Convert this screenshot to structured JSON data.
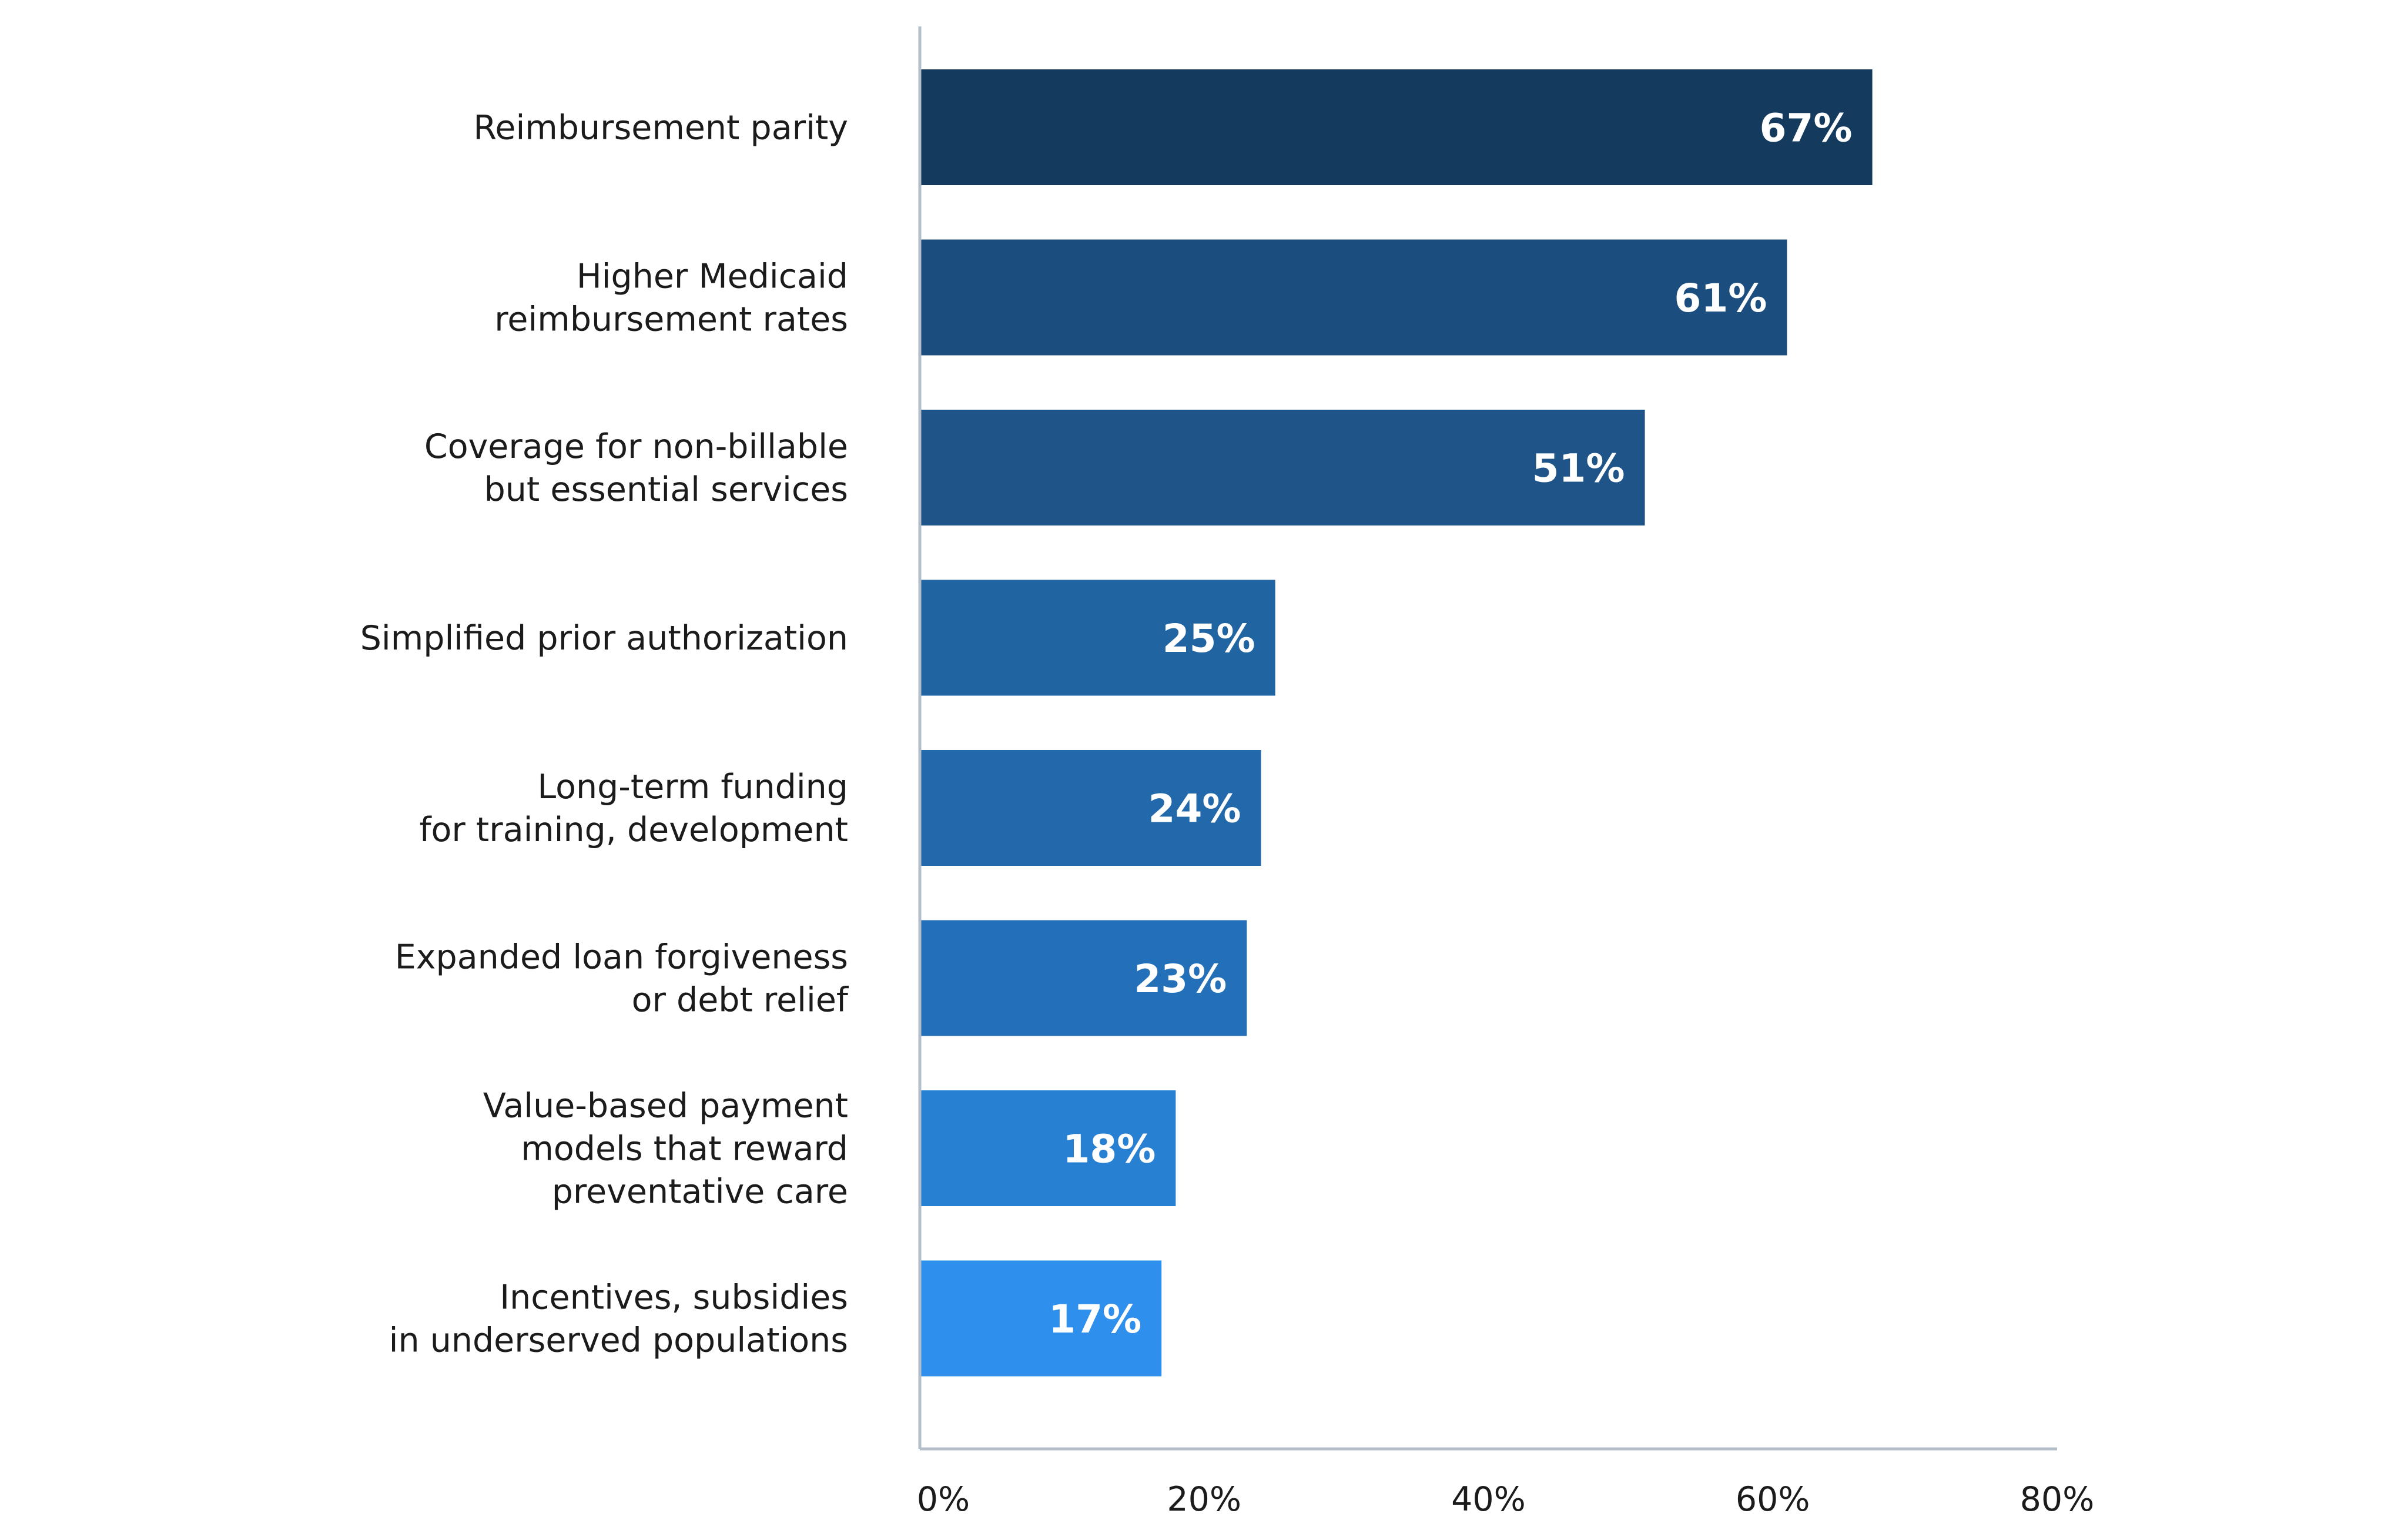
{
  "chart_data": {
    "type": "bar",
    "orientation": "horizontal",
    "categories": [
      "Reimbursement parity",
      "Higher Medicaid\nreimbursement rates",
      "Coverage for non-billable\nbut essential services",
      "Simplified prior authorization",
      "Long-term funding\nfor training, development",
      "Expanded loan forgiveness\nor debt relief",
      "Value-based payment\nmodels that reward\npreventative care",
      "Incentives, subsidies\nin underserved populations"
    ],
    "values": [
      67,
      61,
      51,
      25,
      24,
      23,
      18,
      17
    ],
    "value_labels": [
      "67%",
      "61%",
      "51%",
      "25%",
      "24%",
      "23%",
      "18%",
      "17%"
    ],
    "bar_colors": [
      "#143b5e",
      "#1b4d7e",
      "#1e5488",
      "#2064a2",
      "#2269ab",
      "#2470b8",
      "#2880d3",
      "#2e90ec"
    ],
    "xlim": [
      0,
      80
    ],
    "x_ticks": [
      0,
      20,
      40,
      60,
      80
    ],
    "x_tick_labels": [
      "0%",
      "20%",
      "40%",
      "60%",
      "80%"
    ],
    "grid": false,
    "legend": "none",
    "title": "",
    "xlabel": "",
    "ylabel": "",
    "axis_color": "#b4bec8"
  }
}
